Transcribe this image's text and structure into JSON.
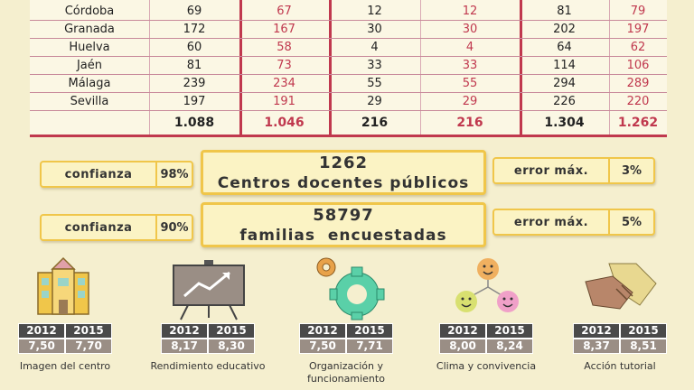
{
  "table": {
    "rows": [
      {
        "name": "Córdoba",
        "v": [
          "69",
          "67",
          "12",
          "12",
          "81",
          "79"
        ]
      },
      {
        "name": "Granada",
        "v": [
          "172",
          "167",
          "30",
          "30",
          "202",
          "197"
        ]
      },
      {
        "name": "Huelva",
        "v": [
          "60",
          "58",
          "4",
          "4",
          "64",
          "62"
        ]
      },
      {
        "name": "Jaén",
        "v": [
          "81",
          "73",
          "33",
          "33",
          "114",
          "106"
        ]
      },
      {
        "name": "Málaga",
        "v": [
          "239",
          "234",
          "55",
          "55",
          "294",
          "289"
        ]
      },
      {
        "name": "Sevilla",
        "v": [
          "197",
          "191",
          "29",
          "29",
          "226",
          "220"
        ]
      }
    ],
    "totals": [
      "1.088",
      "1.046",
      "216",
      "216",
      "1.304",
      "1.262"
    ]
  },
  "stats": {
    "centros": {
      "confianza_label": "confianza",
      "confianza_value": "98%",
      "number": "1262",
      "text": "Centros docentes públicos",
      "error_label": "error máx.",
      "error_value": "3%"
    },
    "familias": {
      "confianza_label": "confianza",
      "confianza_value": "90%",
      "number": "58797",
      "text": "familias  encuestadas",
      "error_label": "error máx.",
      "error_value": "5%"
    }
  },
  "indicators": [
    {
      "y1": "2012",
      "y2": "2015",
      "v1": "7,50",
      "v2": "7,70",
      "caption": "Imagen del centro",
      "icon": "school-icon"
    },
    {
      "y1": "2012",
      "y2": "2015",
      "v1": "8,17",
      "v2": "8,30",
      "caption": "Rendimiento educativo",
      "icon": "chart-board-icon"
    },
    {
      "y1": "2012",
      "y2": "2015",
      "v1": "7,50",
      "v2": "7,71",
      "caption": "Organización y funcionamiento",
      "icon": "gears-icon"
    },
    {
      "y1": "2012",
      "y2": "2015",
      "v1": "8,00",
      "v2": "8,24",
      "caption": "Clima y convivencia",
      "icon": "smileys-icon"
    },
    {
      "y1": "2012",
      "y2": "2015",
      "v1": "8,37",
      "v2": "8,51",
      "caption": "Acción tutorial",
      "icon": "handshake-icon"
    }
  ],
  "colors": {
    "accent_red": "#c0384e",
    "gold": "#f0c64a",
    "background": "#f5efcf"
  }
}
